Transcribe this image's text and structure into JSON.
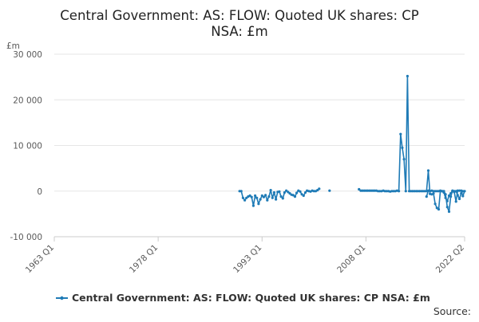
{
  "chart_data": {
    "type": "line",
    "title_line1": "Central Government: AS: FLOW: Quoted UK shares: CP",
    "title_line2": "NSA: £m",
    "y_unit": "£m",
    "ylim": [
      -10000,
      30000
    ],
    "yticks": [
      -10000,
      0,
      10000,
      20000,
      30000
    ],
    "ytick_labels": [
      "-10 000",
      "0",
      "10 000",
      "20 000",
      "30 000"
    ],
    "xlim": [
      1963.0,
      2022.25
    ],
    "xticks": [
      1963.0,
      1978.0,
      1993.0,
      2008.0,
      2022.25
    ],
    "xtick_labels": [
      "1963 Q1",
      "1978 Q1",
      "1993 Q1",
      "2008 Q1",
      "2022 Q2"
    ],
    "grid": "horizontal",
    "legend": "bottom",
    "source_label": "Source:",
    "series": [
      {
        "name": "Central Government: AS: FLOW: Quoted UK shares: CP NSA: £m",
        "color": "#1f7bb6",
        "segments": [
          [
            [
              1989.75,
              0
            ],
            [
              1990.0,
              0
            ],
            [
              1990.25,
              -1500
            ],
            [
              1990.5,
              -2000
            ],
            [
              1990.75,
              -1500
            ],
            [
              1991.0,
              -1200
            ],
            [
              1991.25,
              -1000
            ],
            [
              1991.5,
              -1300
            ],
            [
              1991.75,
              -3200
            ],
            [
              1992.0,
              -1000
            ],
            [
              1992.25,
              -1500
            ],
            [
              1992.5,
              -2800
            ],
            [
              1992.75,
              -1800
            ],
            [
              1993.0,
              -1000
            ],
            [
              1993.25,
              -1300
            ],
            [
              1993.5,
              -900
            ],
            [
              1993.75,
              -2000
            ],
            [
              1994.0,
              -1200
            ],
            [
              1994.25,
              200
            ],
            [
              1994.5,
              -1500
            ],
            [
              1994.75,
              -300
            ],
            [
              1995.0,
              -1800
            ],
            [
              1995.25,
              -200
            ],
            [
              1995.5,
              -100
            ],
            [
              1995.75,
              -1200
            ],
            [
              1996.0,
              -1600
            ],
            [
              1996.25,
              -300
            ],
            [
              1996.5,
              100
            ],
            [
              1996.75,
              -200
            ],
            [
              1997.0,
              -500
            ],
            [
              1997.25,
              -800
            ],
            [
              1997.5,
              -900
            ],
            [
              1997.75,
              -1200
            ],
            [
              1998.0,
              -400
            ],
            [
              1998.25,
              100
            ],
            [
              1998.5,
              -100
            ],
            [
              1998.75,
              -700
            ],
            [
              1999.0,
              -1000
            ],
            [
              1999.25,
              -300
            ],
            [
              1999.5,
              100
            ],
            [
              1999.75,
              0
            ],
            [
              2000.0,
              -100
            ],
            [
              2000.25,
              100
            ],
            [
              2000.5,
              0
            ],
            [
              2000.75,
              0
            ],
            [
              2001.0,
              200
            ],
            [
              2001.25,
              500
            ]
          ],
          [
            [
              2002.75,
              100
            ]
          ],
          [
            [
              2007.0,
              400
            ],
            [
              2007.25,
              100
            ],
            [
              2007.5,
              100
            ],
            [
              2007.75,
              100
            ],
            [
              2008.0,
              100
            ],
            [
              2008.25,
              100
            ],
            [
              2008.5,
              100
            ],
            [
              2008.75,
              100
            ],
            [
              2009.0,
              100
            ],
            [
              2009.25,
              100
            ],
            [
              2009.5,
              100
            ],
            [
              2009.75,
              0
            ],
            [
              2010.0,
              0
            ],
            [
              2010.25,
              0
            ],
            [
              2010.5,
              100
            ],
            [
              2010.75,
              0
            ],
            [
              2011.0,
              0
            ],
            [
              2011.25,
              0
            ],
            [
              2011.5,
              -100
            ],
            [
              2011.75,
              0
            ],
            [
              2012.0,
              0
            ],
            [
              2012.25,
              0
            ],
            [
              2012.5,
              100
            ],
            [
              2012.75,
              0
            ],
            [
              2013.0,
              12500
            ],
            [
              2013.25,
              9500
            ],
            [
              2013.5,
              7000
            ],
            [
              2013.75,
              0
            ],
            [
              2014.0,
              25200
            ],
            [
              2014.25,
              0
            ],
            [
              2014.5,
              0
            ],
            [
              2014.75,
              0
            ],
            [
              2015.0,
              0
            ],
            [
              2015.25,
              0
            ],
            [
              2015.5,
              0
            ],
            [
              2015.75,
              0
            ],
            [
              2016.0,
              0
            ],
            [
              2016.25,
              0
            ],
            [
              2016.5,
              0
            ],
            [
              2016.75,
              0
            ],
            [
              2017.0,
              4500
            ],
            [
              2017.25,
              -600
            ],
            [
              2017.5,
              -700
            ],
            [
              2017.75,
              -500
            ],
            [
              2018.0,
              -2800
            ],
            [
              2018.25,
              -3700
            ],
            [
              2018.5,
              -4000
            ],
            [
              2018.75,
              0
            ],
            [
              2019.0,
              0
            ],
            [
              2019.25,
              0
            ],
            [
              2019.5,
              -700
            ],
            [
              2019.75,
              -3500
            ],
            [
              2020.0,
              -4500
            ],
            [
              2020.25,
              -1200
            ],
            [
              2020.5,
              0
            ],
            [
              2020.75,
              0
            ],
            [
              2021.0,
              0
            ],
            [
              2021.25,
              -900
            ],
            [
              2021.5,
              -1700
            ],
            [
              2021.75,
              -500
            ],
            [
              2022.0,
              0
            ]
          ],
          [
            [
              2016.75,
              -1200
            ],
            [
              2017.0,
              100
            ],
            [
              2017.25,
              0
            ],
            [
              2017.5,
              100
            ],
            [
              2017.75,
              0
            ],
            [
              2018.0,
              0
            ],
            [
              2018.25,
              0
            ],
            [
              2018.5,
              0
            ],
            [
              2018.75,
              100
            ],
            [
              2019.0,
              0
            ],
            [
              2019.25,
              -300
            ],
            [
              2019.5,
              -1500
            ],
            [
              2019.75,
              -2200
            ],
            [
              2020.0,
              -1000
            ],
            [
              2020.25,
              -500
            ],
            [
              2020.5,
              100
            ],
            [
              2020.75,
              -200
            ],
            [
              2021.0,
              -2300
            ],
            [
              2021.25,
              100
            ],
            [
              2021.5,
              100
            ],
            [
              2021.75,
              100
            ],
            [
              2022.0,
              -1100
            ],
            [
              2022.25,
              0
            ]
          ]
        ]
      }
    ]
  }
}
